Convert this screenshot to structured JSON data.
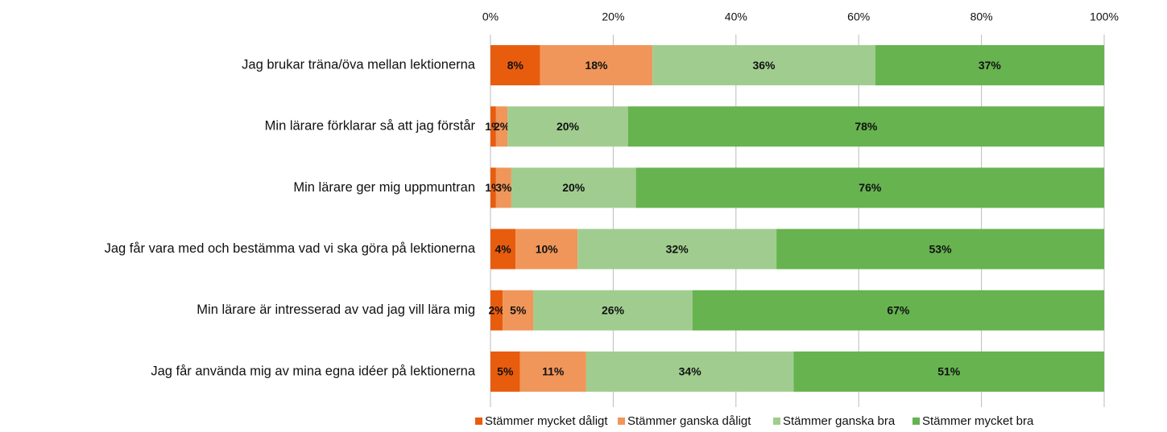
{
  "chart_data": {
    "type": "stacked_barh",
    "categories": [
      "Jag brukar träna/öva mellan lektionerna",
      "Min lärare förklarar så att jag förstår",
      "Min lärare ger mig uppmuntran",
      "Jag får vara med och bestämma vad vi ska göra på lektionerna",
      "Min lärare är intresserad av vad jag vill lära mig",
      "Jag får använda mig av mina egna idéer på lektionerna"
    ],
    "series": [
      {
        "name": "Stämmer mycket dåligt",
        "color": "#e85c0e",
        "values": [
          8.1,
          0.9,
          0.9,
          4.1,
          2.0,
          4.8
        ],
        "value_labels": [
          "8%",
          "1%",
          "1%",
          "4%",
          "2%",
          "5%"
        ]
      },
      {
        "name": "Stämmer ganska dåligt",
        "color": "#f0965a",
        "values": [
          18.3,
          1.9,
          2.5,
          10.1,
          5.0,
          10.8
        ],
        "value_labels": [
          "18%",
          "2%",
          "3%",
          "10%",
          "5%",
          "11%"
        ]
      },
      {
        "name": "Stämmer ganska bra",
        "color": "#a0cd8f",
        "values": [
          36.3,
          19.6,
          20.3,
          32.4,
          25.9,
          33.8
        ],
        "value_labels": [
          "36%",
          "20%",
          "20%",
          "32%",
          "26%",
          "34%"
        ]
      },
      {
        "name": "Stämmer mycket bra",
        "color": "#66b34f",
        "values": [
          37.3,
          77.6,
          76.3,
          53.4,
          67.1,
          50.6
        ],
        "value_labels": [
          "37%",
          "78%",
          "76%",
          "53%",
          "67%",
          "51%"
        ]
      }
    ],
    "xlim": [
      0,
      100
    ],
    "xticks": [
      {
        "value": 0,
        "label": "0%"
      },
      {
        "value": 20,
        "label": "20%"
      },
      {
        "value": 40,
        "label": "40%"
      },
      {
        "value": 60,
        "label": "60%"
      },
      {
        "value": 80,
        "label": "80%"
      },
      {
        "value": 100,
        "label": "100%"
      }
    ],
    "grid": true,
    "legend": "bottom"
  }
}
